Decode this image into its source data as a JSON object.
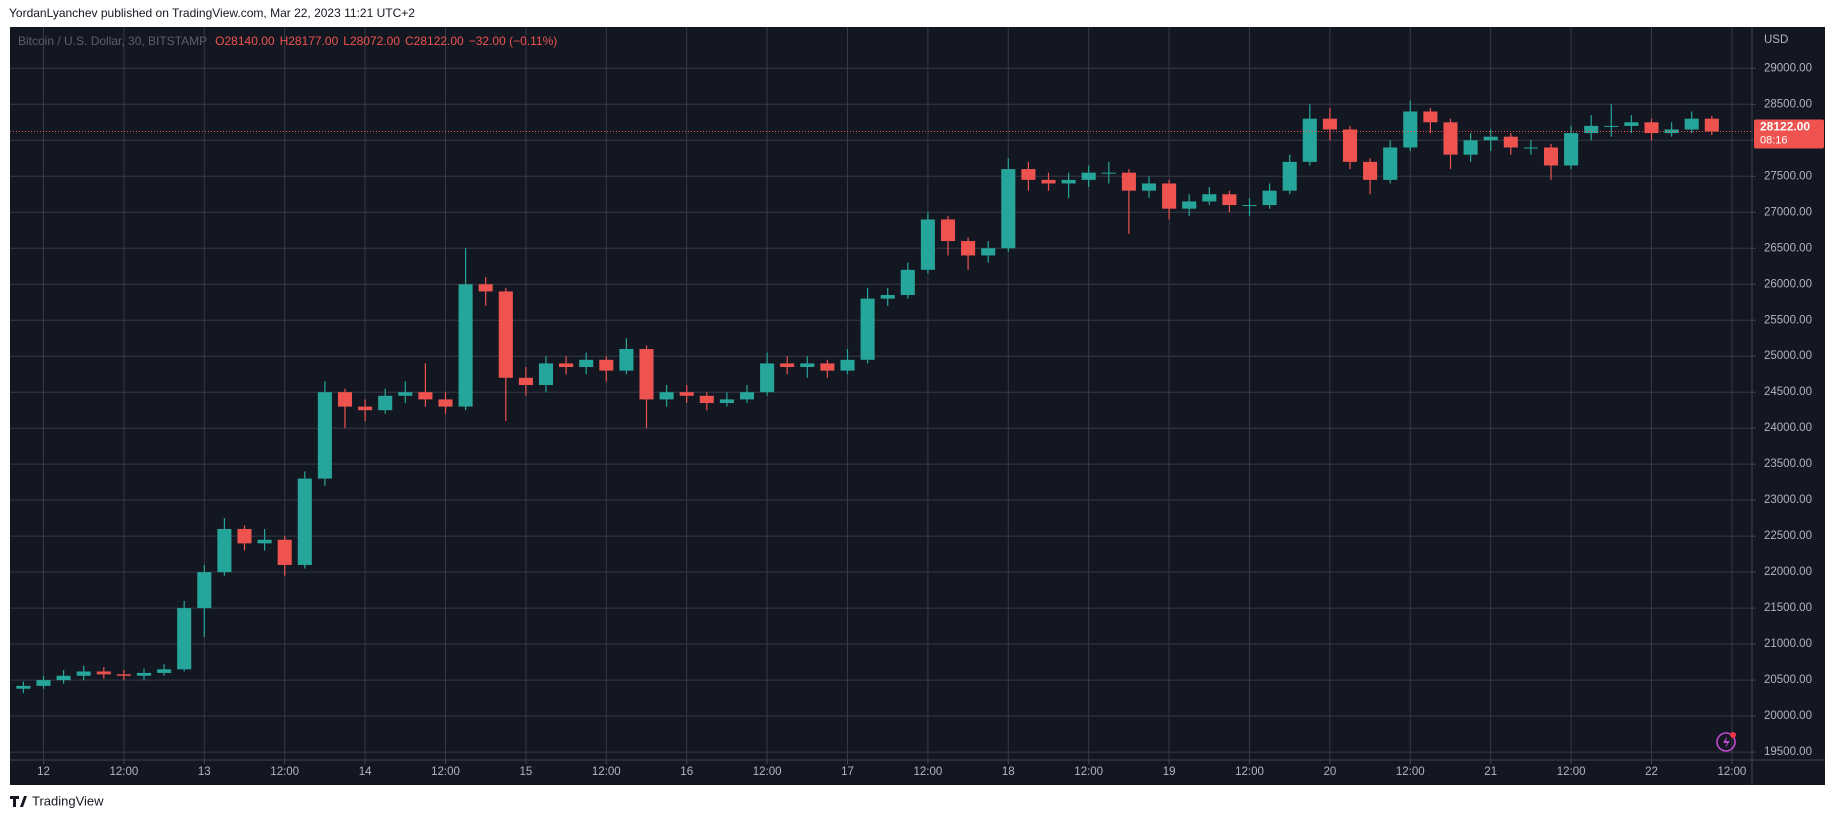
{
  "header": "YordanLyanchev published on TradingView.com, Mar 22, 2023 11:21 UTC+2",
  "footer": "TradingView",
  "chart_data": {
    "type": "candlestick",
    "symbol": "Bitcoin / U.S. Dollar, 30, BITSTAMP",
    "legend_values": [
      "O28140.00",
      "H28177.00",
      "L28072.00",
      "C28122.00",
      "−32.00 (−0.11%)"
    ],
    "y_axis_label": "USD",
    "up_color": "#26a69a",
    "down_color": "#ef5350",
    "grid": true,
    "price_line": {
      "value": 28122,
      "label": "28122.00",
      "countdown": "08:16",
      "color": "#ef5350"
    },
    "xlim": [
      -5,
      255
    ],
    "ylim": [
      19390,
      29560
    ],
    "xticks": [
      {
        "value": 0,
        "label": "12"
      },
      {
        "value": 12,
        "label": "12:00"
      },
      {
        "value": 24,
        "label": "13"
      },
      {
        "value": 36,
        "label": "12:00"
      },
      {
        "value": 48,
        "label": "14"
      },
      {
        "value": 60,
        "label": "12:00"
      },
      {
        "value": 72,
        "label": "15"
      },
      {
        "value": 84,
        "label": "12:00"
      },
      {
        "value": 96,
        "label": "16"
      },
      {
        "value": 108,
        "label": "12:00"
      },
      {
        "value": 120,
        "label": "17"
      },
      {
        "value": 132,
        "label": "12:00"
      },
      {
        "value": 144,
        "label": "18"
      },
      {
        "value": 156,
        "label": "12:00"
      },
      {
        "value": 168,
        "label": "19"
      },
      {
        "value": 180,
        "label": "12:00"
      },
      {
        "value": 192,
        "label": "20"
      },
      {
        "value": 204,
        "label": "12:00"
      },
      {
        "value": 216,
        "label": "21"
      },
      {
        "value": 228,
        "label": "12:00"
      },
      {
        "value": 240,
        "label": "22"
      },
      {
        "value": 252,
        "label": "12:00"
      }
    ],
    "yticks": [
      {
        "value": 19500,
        "label": "19500.00"
      },
      {
        "value": 20000,
        "label": "20000.00"
      },
      {
        "value": 20500,
        "label": "20500.00"
      },
      {
        "value": 21000,
        "label": "21000.00"
      },
      {
        "value": 21500,
        "label": "21500.00"
      },
      {
        "value": 22000,
        "label": "22000.00"
      },
      {
        "value": 22500,
        "label": "22500.00"
      },
      {
        "value": 23000,
        "label": "23000.00"
      },
      {
        "value": 23500,
        "label": "23500.00"
      },
      {
        "value": 24000,
        "label": "24000.00"
      },
      {
        "value": 24500,
        "label": "24500.00"
      },
      {
        "value": 25000,
        "label": "25000.00"
      },
      {
        "value": 25500,
        "label": "25500.00"
      },
      {
        "value": 26000,
        "label": "26000.00"
      },
      {
        "value": 26500,
        "label": "26500.00"
      },
      {
        "value": 27000,
        "label": "27000.00"
      },
      {
        "value": 27500,
        "label": "27500.00"
      },
      {
        "value": 28000,
        "label": "28000.00"
      },
      {
        "value": 28500,
        "label": "28500.00"
      },
      {
        "value": 29000,
        "label": "29000.00"
      }
    ],
    "candles": {
      "x": [
        -3,
        0,
        3,
        6,
        9,
        12,
        15,
        18,
        21,
        24,
        27,
        30,
        33,
        36,
        39,
        42,
        45,
        48,
        51,
        54,
        57,
        60,
        63,
        66,
        69,
        72,
        75,
        78,
        81,
        84,
        87,
        90,
        93,
        96,
        99,
        102,
        105,
        108,
        111,
        114,
        117,
        120,
        123,
        126,
        129,
        132,
        135,
        138,
        141,
        144,
        147,
        150,
        153,
        156,
        159,
        162,
        165,
        168,
        171,
        174,
        177,
        180,
        183,
        186,
        189,
        192,
        195,
        198,
        201,
        204,
        207,
        210,
        213,
        216,
        219,
        222,
        225,
        228,
        231,
        234,
        237,
        240,
        243,
        246,
        249
      ],
      "open": [
        20380,
        20420,
        20500,
        20560,
        20620,
        20580,
        20560,
        20600,
        20650,
        21500,
        22000,
        22600,
        22400,
        22450,
        22100,
        23300,
        24500,
        24300,
        24250,
        24450,
        24500,
        24400,
        24300,
        26000,
        25900,
        24700,
        24600,
        24900,
        24850,
        24950,
        24800,
        25100,
        24400,
        24500,
        24450,
        24350,
        24400,
        24500,
        24900,
        24850,
        24900,
        24800,
        24950,
        25800,
        25850,
        26200,
        26900,
        26600,
        26400,
        26500,
        27600,
        27450,
        27400,
        27450,
        27550,
        27550,
        27300,
        27400,
        27050,
        27150,
        27250,
        27100,
        27100,
        27300,
        27700,
        28300,
        28150,
        27700,
        27450,
        27900,
        28400,
        28250,
        27800,
        28000,
        28050,
        27900,
        27900,
        27650,
        28100,
        28200,
        28200,
        28250,
        28100,
        28150,
        28300
      ],
      "high": [
        20480,
        20560,
        20640,
        20700,
        20680,
        20640,
        20660,
        20720,
        21600,
        22100,
        22750,
        22650,
        22600,
        22500,
        23400,
        24650,
        24550,
        24400,
        24550,
        24650,
        24900,
        24500,
        26500,
        26100,
        25950,
        24850,
        25000,
        25000,
        25050,
        25000,
        25250,
        25150,
        24600,
        24600,
        24500,
        24500,
        24600,
        25050,
        25000,
        25000,
        24950,
        25100,
        25950,
        25950,
        26300,
        27000,
        26950,
        26650,
        26600,
        27750,
        27700,
        27550,
        27550,
        27650,
        27700,
        27600,
        27500,
        27450,
        27250,
        27350,
        27300,
        27200,
        27400,
        27800,
        28500,
        28450,
        28200,
        27750,
        28000,
        28550,
        28450,
        28300,
        28100,
        28150,
        28100,
        28000,
        27950,
        28200,
        28350,
        28500,
        28350,
        28300,
        28250,
        28400,
        28340
      ],
      "low": [
        20320,
        20380,
        20450,
        20500,
        20520,
        20500,
        20500,
        20560,
        20620,
        21100,
        21950,
        22300,
        22300,
        21950,
        22050,
        23200,
        24000,
        24100,
        24200,
        24350,
        24300,
        24200,
        24250,
        25700,
        24100,
        24450,
        24500,
        24750,
        24750,
        24650,
        24750,
        24000,
        24300,
        24350,
        24250,
        24300,
        24350,
        24450,
        24750,
        24700,
        24700,
        24750,
        24900,
        25700,
        25800,
        26150,
        26400,
        26200,
        26300,
        26450,
        27300,
        27300,
        27200,
        27350,
        27400,
        26700,
        27200,
        26900,
        26950,
        27100,
        27000,
        26950,
        27050,
        27250,
        27650,
        28000,
        27600,
        27250,
        27400,
        27850,
        28100,
        27600,
        27700,
        27850,
        27800,
        27800,
        27450,
        27600,
        28000,
        28050,
        28100,
        28000,
        28050,
        28100,
        28072
      ],
      "close": [
        20420,
        20500,
        20560,
        20620,
        20580,
        20560,
        20600,
        20650,
        21500,
        22000,
        22600,
        22400,
        22450,
        22100,
        23300,
        24500,
        24300,
        24250,
        24450,
        24500,
        24400,
        24300,
        26000,
        25900,
        24700,
        24600,
        24900,
        24850,
        24950,
        24800,
        25100,
        24400,
        24500,
        24450,
        24350,
        24400,
        24500,
        24900,
        24850,
        24900,
        24800,
        24950,
        25800,
        25850,
        26200,
        26900,
        26600,
        26400,
        26500,
        27600,
        27450,
        27400,
        27450,
        27550,
        27550,
        27300,
        27400,
        27050,
        27150,
        27250,
        27100,
        27100,
        27300,
        27700,
        28300,
        28150,
        27700,
        27450,
        27900,
        28400,
        28250,
        27800,
        28000,
        28050,
        27900,
        27900,
        27650,
        28100,
        28200,
        28200,
        28250,
        28100,
        28150,
        28300,
        28122
      ]
    }
  }
}
